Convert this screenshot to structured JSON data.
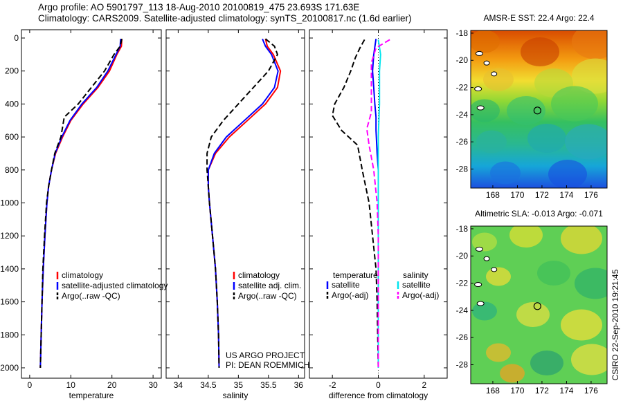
{
  "header": {
    "line1": "Argo profile: AO 5901797_113 18-Aug-2010 20100819_475 23.693S 171.63E",
    "line2": "Climatology: CARS2009. Satellite-adjusted climatology: synTS_20100817.nc (1.6d earlier)"
  },
  "side_stamp": "CSIRO 22-Sep-2010 19:21:45",
  "project_note": [
    "US ARGO PROJECT",
    "PI: DEAN ROEMMICH"
  ],
  "colors": {
    "climatology": "#ff0000",
    "satellite": "#0000ff",
    "argo": "#000000",
    "satellite_diff": "#00e5ee",
    "argo_adj_diff": "#ff00ff",
    "marker": "#000000"
  },
  "chart_data": [
    {
      "id": "temperature",
      "type": "line",
      "xlabel": "temperature",
      "ylabel": "",
      "xlim": [
        -2,
        32
      ],
      "ylim": [
        2050,
        0
      ],
      "xticks": [
        0,
        10,
        20,
        30
      ],
      "yticks": [
        0,
        200,
        400,
        600,
        800,
        1000,
        1200,
        1400,
        1600,
        1800,
        2000
      ],
      "legend": [
        "climatology",
        "satellite-adjusted climatology",
        "Argo(..raw -QC)"
      ],
      "series": [
        {
          "name": "climatology",
          "style": "solid",
          "color": "#ff0000",
          "points": [
            [
              22.4,
              5
            ],
            [
              22.3,
              50
            ],
            [
              21.2,
              100
            ],
            [
              19.4,
              200
            ],
            [
              16.6,
              300
            ],
            [
              13.0,
              400
            ],
            [
              10.0,
              500
            ],
            [
              8.0,
              600
            ],
            [
              6.3,
              700
            ],
            [
              5.3,
              800
            ],
            [
              4.6,
              900
            ],
            [
              4.2,
              1000
            ],
            [
              3.7,
              1200
            ],
            [
              3.3,
              1400
            ],
            [
              3.0,
              1600
            ],
            [
              2.8,
              1800
            ],
            [
              2.6,
              2000
            ]
          ]
        },
        {
          "name": "satellite-adjusted climatology",
          "style": "solid",
          "color": "#0000ff",
          "points": [
            [
              22.1,
              5
            ],
            [
              22.0,
              50
            ],
            [
              21.0,
              100
            ],
            [
              19.0,
              200
            ],
            [
              16.3,
              300
            ],
            [
              12.7,
              400
            ],
            [
              9.8,
              500
            ],
            [
              7.8,
              600
            ],
            [
              6.2,
              700
            ],
            [
              5.3,
              800
            ],
            [
              4.6,
              900
            ],
            [
              4.2,
              1000
            ],
            [
              3.7,
              1200
            ],
            [
              3.3,
              1400
            ],
            [
              3.0,
              1600
            ],
            [
              2.8,
              1800
            ],
            [
              2.6,
              2000
            ]
          ]
        },
        {
          "name": "Argo(..raw -QC)",
          "style": "dashed",
          "color": "#000000",
          "points": [
            [
              22.4,
              5
            ],
            [
              22.0,
              50
            ],
            [
              20.5,
              100
            ],
            [
              18.2,
              200
            ],
            [
              15.0,
              300
            ],
            [
              11.8,
              400
            ],
            [
              8.4,
              480
            ],
            [
              7.6,
              600
            ],
            [
              6.1,
              700
            ],
            [
              5.3,
              800
            ],
            [
              4.6,
              900
            ],
            [
              4.1,
              1000
            ],
            [
              3.6,
              1200
            ],
            [
              3.2,
              1400
            ],
            [
              3.0,
              1600
            ],
            [
              2.8,
              1800
            ],
            [
              2.6,
              2000
            ]
          ]
        }
      ]
    },
    {
      "id": "salinity",
      "type": "line",
      "xlabel": "salinity",
      "ylabel": "",
      "xlim": [
        33.8,
        36.1
      ],
      "ylim": [
        2050,
        0
      ],
      "xticks": [
        34,
        34.5,
        35,
        35.5,
        36
      ],
      "legend": [
        "climatology",
        "satellite adj. clim.",
        "Argo(..raw -QC)"
      ],
      "series": [
        {
          "name": "climatology",
          "style": "solid",
          "color": "#ff0000",
          "points": [
            [
              35.45,
              5
            ],
            [
              35.48,
              50
            ],
            [
              35.58,
              100
            ],
            [
              35.7,
              200
            ],
            [
              35.65,
              300
            ],
            [
              35.45,
              400
            ],
            [
              35.15,
              500
            ],
            [
              34.85,
              600
            ],
            [
              34.62,
              700
            ],
            [
              34.5,
              800
            ],
            [
              34.5,
              900
            ],
            [
              34.52,
              1000
            ],
            [
              34.57,
              1200
            ],
            [
              34.62,
              1400
            ],
            [
              34.65,
              1600
            ],
            [
              34.67,
              1800
            ],
            [
              34.68,
              2000
            ]
          ]
        },
        {
          "name": "satellite adj. clim.",
          "style": "solid",
          "color": "#0000ff",
          "points": [
            [
              35.4,
              5
            ],
            [
              35.45,
              50
            ],
            [
              35.55,
              100
            ],
            [
              35.66,
              200
            ],
            [
              35.6,
              300
            ],
            [
              35.4,
              400
            ],
            [
              35.1,
              500
            ],
            [
              34.8,
              600
            ],
            [
              34.6,
              700
            ],
            [
              34.5,
              800
            ],
            [
              34.5,
              900
            ],
            [
              34.52,
              1000
            ],
            [
              34.57,
              1200
            ],
            [
              34.62,
              1400
            ],
            [
              34.65,
              1600
            ],
            [
              34.67,
              1800
            ],
            [
              34.68,
              2000
            ]
          ]
        },
        {
          "name": "Argo(..raw -QC)",
          "style": "dashed",
          "color": "#000000",
          "points": [
            [
              35.45,
              5
            ],
            [
              35.6,
              50
            ],
            [
              35.65,
              100
            ],
            [
              35.5,
              200
            ],
            [
              35.25,
              300
            ],
            [
              35.0,
              400
            ],
            [
              34.75,
              500
            ],
            [
              34.55,
              600
            ],
            [
              34.48,
              700
            ],
            [
              34.48,
              800
            ],
            [
              34.5,
              900
            ],
            [
              34.52,
              1000
            ],
            [
              34.57,
              1200
            ],
            [
              34.62,
              1400
            ],
            [
              34.65,
              1600
            ],
            [
              34.67,
              1800
            ],
            [
              34.68,
              2000
            ]
          ]
        }
      ]
    },
    {
      "id": "difference",
      "type": "line",
      "xlabel": "difference from climatology",
      "ylabel": "",
      "xlim": [
        -3,
        3
      ],
      "ylim": [
        2050,
        0
      ],
      "xticks": [
        -2,
        0,
        2
      ],
      "legend_groups": [
        {
          "title": "temperature",
          "entries": [
            "satellite",
            "Argo(-adj)"
          ]
        },
        {
          "title": "salinity",
          "entries": [
            "satellite",
            "Argo(-adj)"
          ]
        }
      ],
      "series": [
        {
          "name": "temperature satellite",
          "style": "solid",
          "color": "#0000ff",
          "points": [
            [
              -0.1,
              5
            ],
            [
              -0.2,
              100
            ],
            [
              -0.25,
              200
            ],
            [
              -0.2,
              300
            ],
            [
              -0.15,
              400
            ],
            [
              -0.1,
              480
            ],
            [
              -0.1,
              560
            ],
            [
              -0.05,
              700
            ],
            [
              0.0,
              800
            ],
            [
              0.0,
              1000
            ],
            [
              0.0,
              2000
            ]
          ]
        },
        {
          "name": "temperature Argo(-adj)",
          "style": "dashed",
          "color": "#000000",
          "points": [
            [
              -0.6,
              10
            ],
            [
              -0.8,
              60
            ],
            [
              -1.0,
              120
            ],
            [
              -1.2,
              200
            ],
            [
              -1.5,
              300
            ],
            [
              -1.9,
              400
            ],
            [
              -2.0,
              470
            ],
            [
              -1.6,
              560
            ],
            [
              -0.9,
              650
            ],
            [
              -0.7,
              800
            ],
            [
              -0.4,
              1000
            ],
            [
              -0.25,
              1200
            ],
            [
              -0.1,
              1400
            ],
            [
              -0.05,
              1600
            ],
            [
              0.0,
              2000
            ]
          ]
        },
        {
          "name": "salinity satellite",
          "style": "solid",
          "color": "#00e5ee",
          "points": [
            [
              0.0,
              10
            ],
            [
              0.1,
              100
            ],
            [
              0.05,
              200
            ],
            [
              0.05,
              400
            ],
            [
              0.0,
              600
            ],
            [
              0.0,
              1000
            ],
            [
              0.0,
              2000
            ]
          ]
        },
        {
          "name": "salinity Argo(-adj)",
          "style": "dashed",
          "color": "#ff00ff",
          "points": [
            [
              0.5,
              10
            ],
            [
              -0.1,
              60
            ],
            [
              -0.3,
              150
            ],
            [
              -0.3,
              300
            ],
            [
              -0.3,
              450
            ],
            [
              -0.5,
              550
            ],
            [
              -0.4,
              650
            ],
            [
              -0.2,
              800
            ],
            [
              -0.05,
              1000
            ],
            [
              0.0,
              1200
            ],
            [
              0.0,
              2000
            ]
          ]
        }
      ]
    },
    {
      "id": "sst-map",
      "type": "heatmap",
      "title": "AMSR-E SST: 22.4  Argo: 22.4",
      "xticks": [
        168,
        170,
        172,
        174,
        176
      ],
      "yticks": [
        -18,
        -20,
        -22,
        -24,
        -26,
        -28
      ],
      "xlim": [
        166.2,
        177.3
      ],
      "ylim": [
        -29.4,
        -17.8
      ],
      "profile_location": [
        171.63,
        -23.693
      ]
    },
    {
      "id": "sla-map",
      "type": "heatmap",
      "title": "Altimetric SLA: -0.013  Argo: -0.071",
      "xticks": [
        168,
        170,
        172,
        174,
        176
      ],
      "yticks": [
        -18,
        -20,
        -22,
        -24,
        -26,
        -28
      ],
      "xlim": [
        166.2,
        177.3
      ],
      "ylim": [
        -29.4,
        -17.8
      ],
      "profile_location": [
        171.63,
        -23.693
      ]
    }
  ]
}
